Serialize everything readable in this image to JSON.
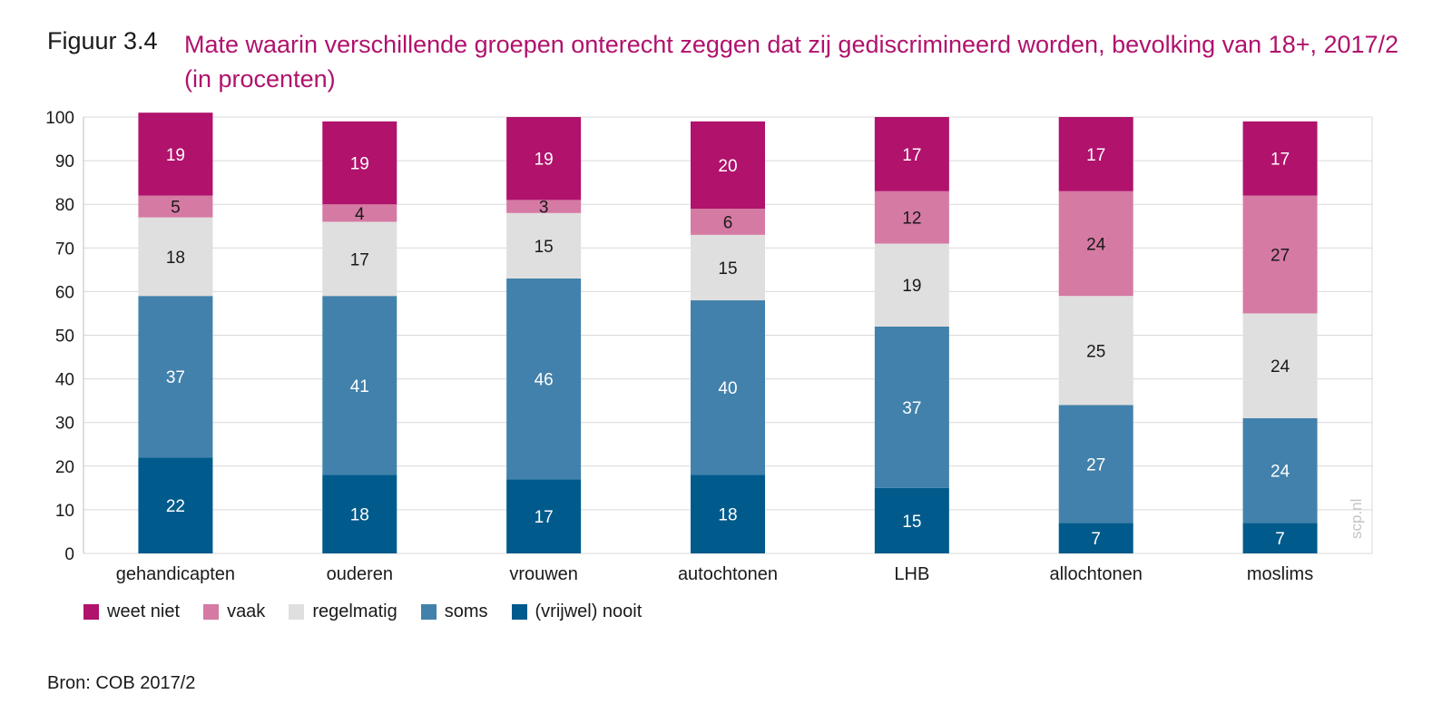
{
  "figure": {
    "label": "Figuur 3.4",
    "title": "Mate waarin verschillende groepen onterecht zeggen dat zij gediscrimineerd worden, bevolking van 18+, 2017/2 (in procenten)"
  },
  "watermark": "scp.nl",
  "source": "Bron: COB 2017/2",
  "chart_data": {
    "type": "bar",
    "stacked": true,
    "categories": [
      "gehandicapten",
      "ouderen",
      "vrouwen",
      "autochtonen",
      "LHB",
      "allochtonen",
      "moslims"
    ],
    "series": [
      {
        "name": "(vrijwel) nooit",
        "color": "#005a8c",
        "values": [
          22,
          18,
          17,
          18,
          15,
          7,
          7
        ]
      },
      {
        "name": "soms",
        "color": "#4281ab",
        "values": [
          37,
          41,
          46,
          40,
          37,
          27,
          24
        ]
      },
      {
        "name": "regelmatig",
        "color": "#e0dfdf",
        "values": [
          18,
          17,
          15,
          15,
          19,
          25,
          24
        ]
      },
      {
        "name": "vaak",
        "color": "#d57aa3",
        "values": [
          5,
          4,
          3,
          6,
          12,
          24,
          27
        ]
      },
      {
        "name": "weet niet",
        "color": "#b0126c",
        "values": [
          19,
          19,
          19,
          20,
          17,
          17,
          17
        ]
      }
    ],
    "legend_order": [
      "weet niet",
      "vaak",
      "regelmatig",
      "soms",
      "(vrijwel) nooit"
    ],
    "ylim": [
      0,
      100
    ],
    "yticks": [
      0,
      10,
      20,
      30,
      40,
      50,
      60,
      70,
      80,
      90,
      100
    ],
    "grid": true,
    "legend_position": "bottom-left"
  }
}
